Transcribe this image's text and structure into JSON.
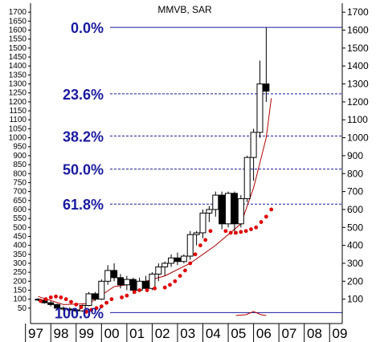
{
  "chart_data": {
    "type": "candlestick",
    "title": "MMVB, SAR",
    "ylim": [
      0,
      1750
    ],
    "x_categories": [
      "97",
      "98",
      "99",
      "00",
      "01",
      "02",
      "03",
      "04",
      "05",
      "06",
      "07",
      "08",
      "09"
    ],
    "y_ticks_left": [
      50,
      100,
      150,
      200,
      250,
      300,
      350,
      400,
      450,
      500,
      550,
      600,
      650,
      700,
      750,
      800,
      850,
      900,
      950,
      1000,
      1050,
      1100,
      1150,
      1200,
      1250,
      1300,
      1350,
      1400,
      1450,
      1500,
      1550,
      1600,
      1650,
      1700
    ],
    "y_ticks_right": [
      100,
      200,
      300,
      400,
      500,
      600,
      700,
      800,
      900,
      1000,
      1100,
      1200,
      1300,
      1400,
      1500,
      1600,
      1700
    ],
    "fib_levels": [
      {
        "label": "0.0%",
        "value": 1615
      },
      {
        "label": "23.6%",
        "value": 1245
      },
      {
        "label": "38.2%",
        "value": 1010
      },
      {
        "label": "50.0%",
        "value": 825
      },
      {
        "label": "61.8%",
        "value": 630
      },
      {
        "label": "100.0%",
        "value": 25
      }
    ],
    "candles": [
      {
        "x": 1997.0,
        "open": 100,
        "high": 105,
        "low": 90,
        "close": 95
      },
      {
        "x": 1997.25,
        "open": 95,
        "high": 100,
        "low": 75,
        "close": 80
      },
      {
        "x": 1997.5,
        "open": 80,
        "high": 90,
        "low": 60,
        "close": 70
      },
      {
        "x": 1997.75,
        "open": 70,
        "high": 75,
        "low": 40,
        "close": 50
      },
      {
        "x": 1998.0,
        "open": 50,
        "high": 60,
        "low": 35,
        "close": 45
      },
      {
        "x": 1998.25,
        "open": 45,
        "high": 55,
        "low": 30,
        "close": 40
      },
      {
        "x": 1998.5,
        "open": 40,
        "high": 50,
        "low": 25,
        "close": 35
      },
      {
        "x": 1998.75,
        "open": 35,
        "high": 70,
        "low": 30,
        "close": 65
      },
      {
        "x": 1999.0,
        "open": 65,
        "high": 140,
        "low": 60,
        "close": 130
      },
      {
        "x": 1999.25,
        "open": 130,
        "high": 140,
        "low": 90,
        "close": 100
      },
      {
        "x": 1999.5,
        "open": 100,
        "high": 210,
        "low": 95,
        "close": 200
      },
      {
        "x": 1999.75,
        "open": 200,
        "high": 290,
        "low": 180,
        "close": 260
      },
      {
        "x": 2000.0,
        "open": 260,
        "high": 300,
        "low": 200,
        "close": 220
      },
      {
        "x": 2000.25,
        "open": 220,
        "high": 240,
        "low": 160,
        "close": 180
      },
      {
        "x": 2000.5,
        "open": 180,
        "high": 230,
        "low": 150,
        "close": 210
      },
      {
        "x": 2000.75,
        "open": 210,
        "high": 220,
        "low": 130,
        "close": 150
      },
      {
        "x": 2001.0,
        "open": 150,
        "high": 220,
        "low": 140,
        "close": 200
      },
      {
        "x": 2001.25,
        "open": 200,
        "high": 230,
        "low": 150,
        "close": 160
      },
      {
        "x": 2001.5,
        "open": 160,
        "high": 250,
        "low": 150,
        "close": 240
      },
      {
        "x": 2001.75,
        "open": 240,
        "high": 300,
        "low": 200,
        "close": 280
      },
      {
        "x": 2002.0,
        "open": 280,
        "high": 310,
        "low": 230,
        "close": 300
      },
      {
        "x": 2002.25,
        "open": 300,
        "high": 350,
        "low": 280,
        "close": 330
      },
      {
        "x": 2002.5,
        "open": 330,
        "high": 360,
        "low": 290,
        "close": 310
      },
      {
        "x": 2002.75,
        "open": 310,
        "high": 350,
        "low": 300,
        "close": 340
      },
      {
        "x": 2003.0,
        "open": 340,
        "high": 480,
        "low": 320,
        "close": 460
      },
      {
        "x": 2003.25,
        "open": 460,
        "high": 480,
        "low": 400,
        "close": 470
      },
      {
        "x": 2003.5,
        "open": 470,
        "high": 600,
        "low": 440,
        "close": 580
      },
      {
        "x": 2003.75,
        "open": 580,
        "high": 620,
        "low": 530,
        "close": 600
      },
      {
        "x": 2004.0,
        "open": 600,
        "high": 700,
        "low": 560,
        "close": 680
      },
      {
        "x": 2004.25,
        "open": 680,
        "high": 700,
        "low": 490,
        "close": 520
      },
      {
        "x": 2004.5,
        "open": 520,
        "high": 700,
        "low": 500,
        "close": 690
      },
      {
        "x": 2004.75,
        "open": 690,
        "high": 700,
        "low": 460,
        "close": 520
      },
      {
        "x": 2005.0,
        "open": 520,
        "high": 680,
        "low": 500,
        "close": 660
      },
      {
        "x": 2005.25,
        "open": 660,
        "high": 900,
        "low": 640,
        "close": 890
      },
      {
        "x": 2005.5,
        "open": 890,
        "high": 1050,
        "low": 760,
        "close": 1030
      },
      {
        "x": 2005.75,
        "open": 1030,
        "high": 1430,
        "low": 1000,
        "close": 1300
      },
      {
        "x": 2006.0,
        "open": 1300,
        "high": 1615,
        "low": 1200,
        "close": 1260
      }
    ],
    "sar": [
      {
        "x": 1997.1,
        "y": 90
      },
      {
        "x": 1997.3,
        "y": 100
      },
      {
        "x": 1997.5,
        "y": 110
      },
      {
        "x": 1997.7,
        "y": 115
      },
      {
        "x": 1997.9,
        "y": 110
      },
      {
        "x": 1998.1,
        "y": 100
      },
      {
        "x": 1998.3,
        "y": 85
      },
      {
        "x": 1998.5,
        "y": 70
      },
      {
        "x": 1998.7,
        "y": 55
      },
      {
        "x": 1998.9,
        "y": 30
      },
      {
        "x": 1999.1,
        "y": 40
      },
      {
        "x": 1999.3,
        "y": 50
      },
      {
        "x": 1999.5,
        "y": 60
      },
      {
        "x": 1999.7,
        "y": 80
      },
      {
        "x": 1999.9,
        "y": 100
      },
      {
        "x": 2000.3,
        "y": 110
      },
      {
        "x": 2000.5,
        "y": 120
      },
      {
        "x": 2000.8,
        "y": 140
      },
      {
        "x": 2001.0,
        "y": 150
      },
      {
        "x": 2001.3,
        "y": 150
      },
      {
        "x": 2001.6,
        "y": 160
      },
      {
        "x": 2002.0,
        "y": 165
      },
      {
        "x": 2002.2,
        "y": 180
      },
      {
        "x": 2002.4,
        "y": 200
      },
      {
        "x": 2002.6,
        "y": 230
      },
      {
        "x": 2002.8,
        "y": 260
      },
      {
        "x": 2003.0,
        "y": 300
      },
      {
        "x": 2003.2,
        "y": 350
      },
      {
        "x": 2003.4,
        "y": 400
      },
      {
        "x": 2003.6,
        "y": 430
      },
      {
        "x": 2003.8,
        "y": 480
      },
      {
        "x": 2004.4,
        "y": 480
      },
      {
        "x": 2004.6,
        "y": 470
      },
      {
        "x": 2004.8,
        "y": 470
      },
      {
        "x": 2005.0,
        "y": 475
      },
      {
        "x": 2005.2,
        "y": 480
      },
      {
        "x": 2005.4,
        "y": 490
      },
      {
        "x": 2005.6,
        "y": 500
      },
      {
        "x": 2005.8,
        "y": 530
      },
      {
        "x": 2006.0,
        "y": 560
      },
      {
        "x": 2006.2,
        "y": 600
      }
    ],
    "ma": [
      {
        "x": 1997.0,
        "y": 115
      },
      {
        "x": 1998.0,
        "y": 70
      },
      {
        "x": 1999.0,
        "y": 75
      },
      {
        "x": 2000.0,
        "y": 170
      },
      {
        "x": 2001.0,
        "y": 190
      },
      {
        "x": 2002.0,
        "y": 230
      },
      {
        "x": 2003.0,
        "y": 300
      },
      {
        "x": 2004.0,
        "y": 400
      },
      {
        "x": 2005.0,
        "y": 520
      },
      {
        "x": 2005.5,
        "y": 720
      },
      {
        "x": 2006.0,
        "y": 1000
      },
      {
        "x": 2006.2,
        "y": 1220
      }
    ],
    "sub_line": [
      {
        "x": 2004.8,
        "y": 0
      },
      {
        "x": 2005.2,
        "y": 10
      },
      {
        "x": 2005.5,
        "y": 50
      },
      {
        "x": 2005.8,
        "y": 10
      },
      {
        "x": 2006.0,
        "y": 0
      }
    ],
    "colors": {
      "fib_line": "#1a1aa0",
      "sar": "#e00000",
      "ma": "#b00000",
      "candle": "#000000",
      "axis": "#000000"
    }
  }
}
